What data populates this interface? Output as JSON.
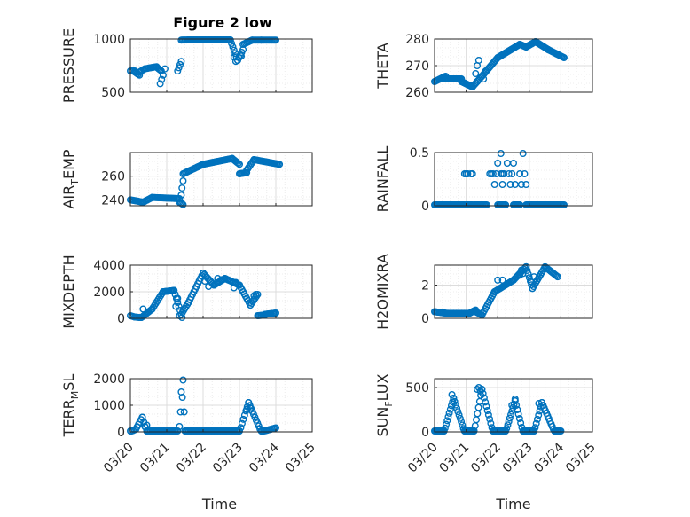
{
  "figure_title": "Figure 2 low",
  "marker_color": "#0072bd",
  "chart_data": [
    {
      "id": "pressure",
      "type": "scatter",
      "ylabel": "PRESSURE",
      "ylabel_sub": "",
      "ylabel_tail": "",
      "ylim": [
        500,
        1000
      ],
      "yticks": [
        500,
        1000
      ],
      "xlim": [
        0,
        5
      ],
      "segments": [
        [
          0,
          700,
          0.12,
          700
        ],
        [
          0.12,
          690,
          0.25,
          660
        ],
        [
          0.25,
          690,
          0.4,
          720
        ],
        [
          0.4,
          720,
          0.72,
          740
        ],
        [
          0.72,
          735,
          0.85,
          700
        ],
        [
          1.3,
          700,
          1.4,
          790
        ],
        [
          1.4,
          990,
          2.75,
          1000
        ],
        [
          2.75,
          990,
          2.95,
          800
        ],
        [
          2.95,
          800,
          3.1,
          900
        ],
        [
          3.1,
          950,
          3.35,
          990
        ],
        [
          3.35,
          990,
          3.6,
          990
        ],
        [
          3.6,
          990,
          4.0,
          990
        ]
      ],
      "points": [
        [
          0.82,
          580
        ],
        [
          0.86,
          620
        ],
        [
          0.9,
          660
        ],
        [
          0.95,
          720
        ],
        [
          2.9,
          790
        ],
        [
          2.85,
          830
        ],
        [
          3.05,
          840
        ]
      ]
    },
    {
      "id": "theta",
      "type": "scatter",
      "ylabel": "THETA",
      "ylabel_sub": "",
      "ylabel_tail": "",
      "ylim": [
        260,
        280
      ],
      "yticks": [
        260,
        270,
        280
      ],
      "xlim": [
        0,
        5
      ],
      "segments": [
        [
          0,
          264,
          0.35,
          266
        ],
        [
          0.35,
          265,
          0.85,
          265
        ],
        [
          0.85,
          264,
          1.2,
          262
        ],
        [
          1.2,
          262,
          1.35,
          264
        ],
        [
          1.35,
          264,
          1.5,
          266
        ],
        [
          1.5,
          266,
          2.0,
          273
        ],
        [
          2.0,
          273,
          2.7,
          278
        ],
        [
          2.7,
          278,
          2.9,
          277
        ],
        [
          2.9,
          277,
          3.2,
          279
        ],
        [
          3.2,
          279,
          3.6,
          276
        ],
        [
          3.6,
          276,
          4.1,
          273
        ]
      ],
      "points": [
        [
          1.3,
          267
        ],
        [
          1.35,
          270
        ],
        [
          1.4,
          272
        ],
        [
          1.55,
          265
        ],
        [
          1.62,
          268
        ]
      ]
    },
    {
      "id": "airtemp",
      "type": "scatter",
      "ylabel": "AIR",
      "ylabel_sub": "T",
      "ylabel_tail": "EMP",
      "ylim": [
        235,
        280
      ],
      "yticks": [
        240,
        260
      ],
      "xlim": [
        0,
        5
      ],
      "segments": [
        [
          0,
          240,
          0.35,
          238
        ],
        [
          0.35,
          238,
          0.6,
          242
        ],
        [
          0.6,
          242,
          1.35,
          241
        ],
        [
          1.35,
          238,
          1.45,
          236
        ],
        [
          1.45,
          262,
          2.0,
          270
        ],
        [
          2.0,
          270,
          2.8,
          275
        ],
        [
          2.8,
          275,
          3.0,
          270
        ],
        [
          3.0,
          262,
          3.2,
          263
        ],
        [
          3.2,
          265,
          3.4,
          274
        ],
        [
          3.4,
          274,
          4.1,
          270
        ]
      ],
      "points": [
        [
          1.4,
          244
        ],
        [
          1.42,
          250
        ],
        [
          1.45,
          256
        ]
      ]
    },
    {
      "id": "rainfall",
      "type": "scatter",
      "ylabel": "RAINFALL",
      "ylabel_sub": "",
      "ylabel_tail": "",
      "ylim": [
        0,
        0.5
      ],
      "yticks": [
        0,
        0.5
      ],
      "xlim": [
        0,
        5
      ],
      "segments": [
        [
          0,
          0,
          0.95,
          0
        ],
        [
          1.0,
          0,
          1.2,
          0
        ],
        [
          1.25,
          0,
          1.65,
          0
        ],
        [
          2.0,
          0,
          2.25,
          0
        ],
        [
          2.5,
          0,
          2.7,
          0
        ],
        [
          2.9,
          0,
          4.1,
          0
        ]
      ],
      "points": [
        [
          0.95,
          0.3
        ],
        [
          1.0,
          0.3
        ],
        [
          1.05,
          0.3
        ],
        [
          1.15,
          0.3
        ],
        [
          1.2,
          0.3
        ],
        [
          1.75,
          0.3
        ],
        [
          1.8,
          0.3
        ],
        [
          1.85,
          0.3
        ],
        [
          1.9,
          0.2
        ],
        [
          1.95,
          0.3
        ],
        [
          2.0,
          0.4
        ],
        [
          2.1,
          0.3
        ],
        [
          2.15,
          0.2
        ],
        [
          2.2,
          0.3
        ],
        [
          2.3,
          0.4
        ],
        [
          2.35,
          0.3
        ],
        [
          2.4,
          0.2
        ],
        [
          2.45,
          0.3
        ],
        [
          2.5,
          0.4
        ],
        [
          2.55,
          0.2
        ],
        [
          2.7,
          0.3
        ],
        [
          2.75,
          0.2
        ],
        [
          2.8,
          0.5
        ],
        [
          2.85,
          0.3
        ],
        [
          2.9,
          0.2
        ],
        [
          2.1,
          0.5
        ],
        [
          2.15,
          0.3
        ]
      ]
    },
    {
      "id": "mixdepth",
      "type": "scatter",
      "ylabel": "MIXDEPTH",
      "ylabel_sub": "",
      "ylabel_tail": "",
      "ylim": [
        0,
        4000
      ],
      "yticks": [
        0,
        2000,
        4000
      ],
      "xlim": [
        0,
        5
      ],
      "segments": [
        [
          0,
          200,
          0.12,
          100
        ],
        [
          0.12,
          100,
          0.3,
          50
        ],
        [
          0.3,
          50,
          0.6,
          700
        ],
        [
          0.6,
          700,
          0.9,
          2000
        ],
        [
          0.9,
          2000,
          1.2,
          2100
        ],
        [
          1.2,
          2100,
          1.4,
          300
        ],
        [
          1.4,
          300,
          1.6,
          1200
        ],
        [
          1.6,
          1200,
          2.0,
          3400
        ],
        [
          2.0,
          3400,
          2.3,
          2500
        ],
        [
          2.3,
          2500,
          2.6,
          3000
        ],
        [
          2.6,
          3000,
          3.0,
          2500
        ],
        [
          3.0,
          2500,
          3.3,
          1000
        ],
        [
          3.3,
          1000,
          3.5,
          1800
        ],
        [
          3.5,
          200,
          3.7,
          250
        ],
        [
          3.7,
          300,
          4.0,
          400
        ]
      ],
      "points": [
        [
          0.35,
          700
        ],
        [
          1.25,
          900
        ],
        [
          1.3,
          1500
        ],
        [
          1.35,
          200
        ],
        [
          1.42,
          50
        ],
        [
          2.05,
          2800
        ],
        [
          2.15,
          2400
        ],
        [
          2.4,
          3000
        ],
        [
          2.5,
          2900
        ],
        [
          2.85,
          2300
        ],
        [
          2.9,
          2700
        ],
        [
          3.4,
          1700
        ],
        [
          3.45,
          1800
        ]
      ]
    },
    {
      "id": "h2omixra",
      "type": "scatter",
      "ylabel": "H2OMIXRA",
      "ylabel_sub": "",
      "ylabel_tail": "",
      "ylim": [
        0,
        3.2
      ],
      "yticks": [
        0,
        2
      ],
      "xlim": [
        0,
        5
      ],
      "segments": [
        [
          0,
          0.4,
          0.4,
          0.3
        ],
        [
          0.4,
          0.3,
          1.1,
          0.3
        ],
        [
          1.1,
          0.3,
          1.3,
          0.5
        ],
        [
          1.3,
          0.4,
          1.5,
          0.2
        ],
        [
          1.5,
          0.2,
          1.9,
          1.6
        ],
        [
          1.9,
          1.6,
          2.5,
          2.3
        ],
        [
          2.5,
          2.3,
          2.9,
          3.1
        ],
        [
          2.9,
          3.1,
          3.1,
          1.8
        ],
        [
          3.1,
          1.8,
          3.5,
          3.1
        ],
        [
          3.5,
          3.1,
          3.9,
          2.5
        ]
      ],
      "points": [
        [
          2.0,
          2.3
        ],
        [
          2.15,
          2.3
        ],
        [
          2.7,
          2.6
        ],
        [
          2.75,
          2.9
        ],
        [
          2.8,
          2.7
        ],
        [
          3.05,
          2.2
        ],
        [
          3.15,
          2.5
        ]
      ]
    },
    {
      "id": "terrmsl",
      "type": "scatter",
      "ylabel": "TERR",
      "ylabel_sub": "M",
      "ylabel_tail": "SL",
      "ylim": [
        0,
        2000
      ],
      "yticks": [
        0,
        1000,
        2000
      ],
      "xlim": [
        0,
        5
      ],
      "segments": [
        [
          0,
          0,
          0.15,
          100
        ],
        [
          0.15,
          100,
          0.33,
          550
        ],
        [
          0.33,
          550,
          0.45,
          0
        ],
        [
          0.45,
          0,
          1.3,
          0
        ],
        [
          1.5,
          0,
          3.0,
          0
        ],
        [
          3.0,
          0,
          3.25,
          1100
        ],
        [
          3.25,
          1100,
          3.6,
          0
        ],
        [
          3.6,
          0,
          4.0,
          150
        ]
      ],
      "points": [
        [
          0.4,
          200
        ],
        [
          0.45,
          250
        ],
        [
          1.35,
          200
        ],
        [
          1.4,
          1500
        ],
        [
          1.43,
          1300
        ],
        [
          1.45,
          1950
        ],
        [
          1.48,
          750
        ],
        [
          1.38,
          750
        ],
        [
          3.2,
          850
        ],
        [
          3.3,
          900
        ]
      ]
    },
    {
      "id": "sunflux",
      "type": "scatter",
      "ylabel": "SUN",
      "ylabel_sub": "F",
      "ylabel_tail": "LUX",
      "ylim": [
        0,
        600
      ],
      "yticks": [
        0,
        500
      ],
      "xlim": [
        0,
        5
      ],
      "segments": [
        [
          0,
          0,
          0.3,
          0
        ],
        [
          0.3,
          0,
          0.6,
          380
        ],
        [
          0.6,
          380,
          0.95,
          0
        ],
        [
          0.95,
          0,
          1.25,
          0
        ],
        [
          1.25,
          0,
          1.5,
          480
        ],
        [
          1.5,
          480,
          1.85,
          0
        ],
        [
          1.85,
          0,
          2.25,
          0
        ],
        [
          2.25,
          0,
          2.55,
          350
        ],
        [
          2.55,
          350,
          2.8,
          0
        ],
        [
          2.8,
          0,
          3.15,
          0
        ],
        [
          3.15,
          0,
          3.4,
          330
        ],
        [
          3.4,
          330,
          3.8,
          0
        ],
        [
          3.8,
          0,
          4.0,
          0
        ]
      ],
      "points": [
        [
          0.55,
          420
        ],
        [
          1.35,
          480
        ],
        [
          1.4,
          500
        ],
        [
          1.45,
          460
        ],
        [
          2.45,
          300
        ],
        [
          2.55,
          370
        ],
        [
          3.3,
          320
        ]
      ]
    }
  ],
  "x_axis": {
    "tick_labels": [
      "03/20",
      "03/21",
      "03/22",
      "03/23",
      "03/24",
      "03/25"
    ],
    "label": "Time"
  }
}
